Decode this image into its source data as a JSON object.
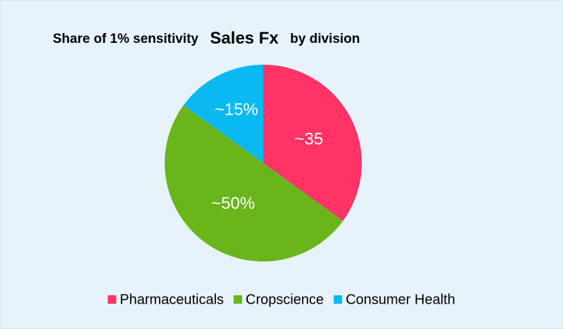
{
  "chart_data": {
    "type": "pie",
    "title": [
      "Share of 1% sensitivity",
      "Sales Fx",
      "by division"
    ],
    "categories": [
      "Pharmaceuticals",
      "Cropscience",
      "Consumer Health"
    ],
    "values": [
      35,
      50,
      15
    ],
    "value_labels": [
      "~35",
      "~50%",
      "~15%"
    ],
    "colors": [
      "#ff3366",
      "#6ab51a",
      "#0bb9f2"
    ],
    "legend": "bottom"
  }
}
